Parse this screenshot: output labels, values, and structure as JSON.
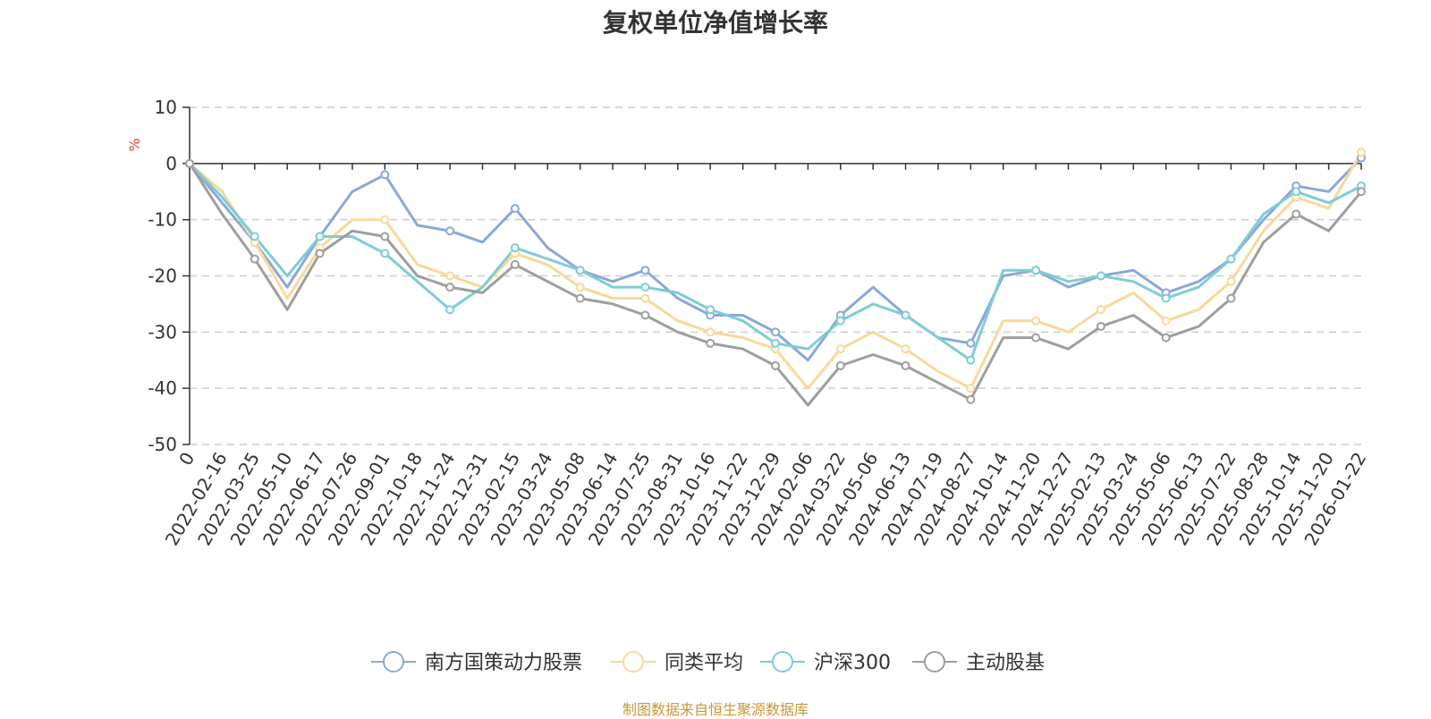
{
  "chart_data": {
    "type": "line",
    "title": "复权单位净值增长率",
    "ylabel": "%",
    "xlabel": "",
    "ylim": [
      -50,
      10
    ],
    "yticks": [
      10,
      0,
      -10,
      -20,
      -30,
      -40,
      -50
    ],
    "grid": true,
    "legend_position": "bottom",
    "x_labels": [
      "0",
      "2022-02-16",
      "2022-03-25",
      "2022-05-10",
      "2022-06-17",
      "2022-07-26",
      "2022-09-01",
      "2022-10-18",
      "2022-11-24",
      "2022-12-31",
      "2023-02-15",
      "2023-03-24",
      "2023-05-08",
      "2023-06-14",
      "2023-07-25",
      "2023-08-31",
      "2023-10-16",
      "2023-11-22",
      "2023-12-29",
      "2024-02-06",
      "2024-03-22",
      "2024-05-06",
      "2024-06-13",
      "2024-07-19",
      "2024-08-27",
      "2024-10-14",
      "2024-11-20",
      "2024-12-27",
      "2025-02-13",
      "2025-03-24",
      "2025-05-06",
      "2025-06-13",
      "2025-07-22",
      "2025-08-28",
      "2025-10-14",
      "2025-11-20",
      "2026-01-22"
    ],
    "series": [
      {
        "name": "南方国策动力股票",
        "color": "#8aa8d8",
        "values": [
          0,
          -7,
          -14,
          -22,
          -13,
          -5,
          -2,
          -11,
          -12,
          -14,
          -8,
          -15,
          -19,
          -21,
          -19,
          -24,
          -27,
          -27,
          -30,
          -35,
          -27,
          -22,
          -27,
          -31,
          -32,
          -20,
          -19,
          -22,
          -20,
          -19,
          -23,
          -21,
          -17,
          -10,
          -4,
          -5,
          1
        ]
      },
      {
        "name": "同类平均",
        "color": "#f9d89a",
        "values": [
          0,
          -5,
          -14,
          -24,
          -15,
          -10,
          -10,
          -18,
          -20,
          -22,
          -16,
          -18,
          -22,
          -24,
          -24,
          -28,
          -30,
          -31,
          -33,
          -40,
          -33,
          -30,
          -33,
          -37,
          -40,
          -28,
          -28,
          -30,
          -26,
          -23,
          -28,
          -26,
          -21,
          -12,
          -6,
          -8,
          2
        ]
      },
      {
        "name": "沪深300",
        "color": "#7dcdd4",
        "values": [
          0,
          -6,
          -13,
          -20,
          -13,
          -13,
          -16,
          -21,
          -26,
          -22,
          -15,
          -17,
          -19,
          -22,
          -22,
          -23,
          -26,
          -28,
          -32,
          -33,
          -28,
          -25,
          -27,
          -31,
          -35,
          -19,
          -19,
          -21,
          -20,
          -21,
          -24,
          -22,
          -17,
          -9,
          -5,
          -7,
          -4
        ]
      },
      {
        "name": "主动股基",
        "color": "#9e9e9e",
        "values": [
          0,
          -9,
          -17,
          -26,
          -16,
          -12,
          -13,
          -20,
          -22,
          -23,
          -18,
          -21,
          -24,
          -25,
          -27,
          -30,
          -32,
          -33,
          -36,
          -43,
          -36,
          -34,
          -36,
          -39,
          -42,
          -31,
          -31,
          -33,
          -29,
          -27,
          -31,
          -29,
          -24,
          -14,
          -9,
          -12,
          -5
        ]
      }
    ]
  },
  "source_note": "制图数据来自恒生聚源数据库"
}
